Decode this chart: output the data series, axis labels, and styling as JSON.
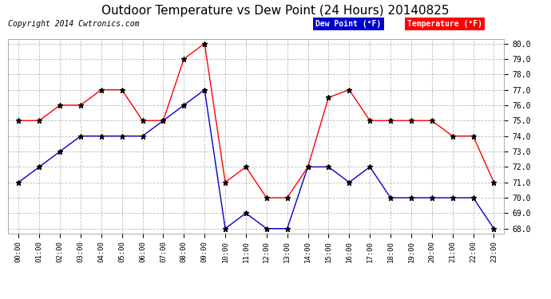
{
  "title": "Outdoor Temperature vs Dew Point (24 Hours) 20140825",
  "copyright": "Copyright 2014 Cwtronics.com",
  "legend_dew": "Dew Point (°F)",
  "legend_temp": "Temperature (°F)",
  "hours": [
    "00:00",
    "01:00",
    "02:00",
    "03:00",
    "04:00",
    "05:00",
    "06:00",
    "07:00",
    "08:00",
    "09:00",
    "10:00",
    "11:00",
    "12:00",
    "13:00",
    "14:00",
    "15:00",
    "16:00",
    "17:00",
    "18:00",
    "19:00",
    "20:00",
    "21:00",
    "22:00",
    "23:00"
  ],
  "temperature": [
    75.0,
    75.0,
    76.0,
    76.0,
    77.0,
    77.0,
    75.0,
    75.0,
    79.0,
    80.0,
    71.0,
    72.0,
    70.0,
    70.0,
    72.0,
    76.5,
    77.0,
    75.0,
    75.0,
    75.0,
    75.0,
    74.0,
    74.0,
    71.0
  ],
  "dew_point": [
    71.0,
    72.0,
    73.0,
    74.0,
    74.0,
    74.0,
    74.0,
    75.0,
    76.0,
    77.0,
    68.0,
    69.0,
    68.0,
    68.0,
    72.0,
    72.0,
    71.0,
    72.0,
    70.0,
    70.0,
    70.0,
    70.0,
    70.0,
    68.0
  ],
  "temp_color": "#ff0000",
  "dew_color": "#0000cc",
  "bg_color": "#ffffff",
  "plot_bg_color": "#ffffff",
  "ylim_min": 68.0,
  "ylim_max": 80.0,
  "ytick_step": 1.0,
  "grid_color": "#bbbbbb",
  "legend_dew_bg": "#0000cc",
  "legend_temp_bg": "#ff0000",
  "title_fontsize": 11,
  "copyright_fontsize": 7
}
